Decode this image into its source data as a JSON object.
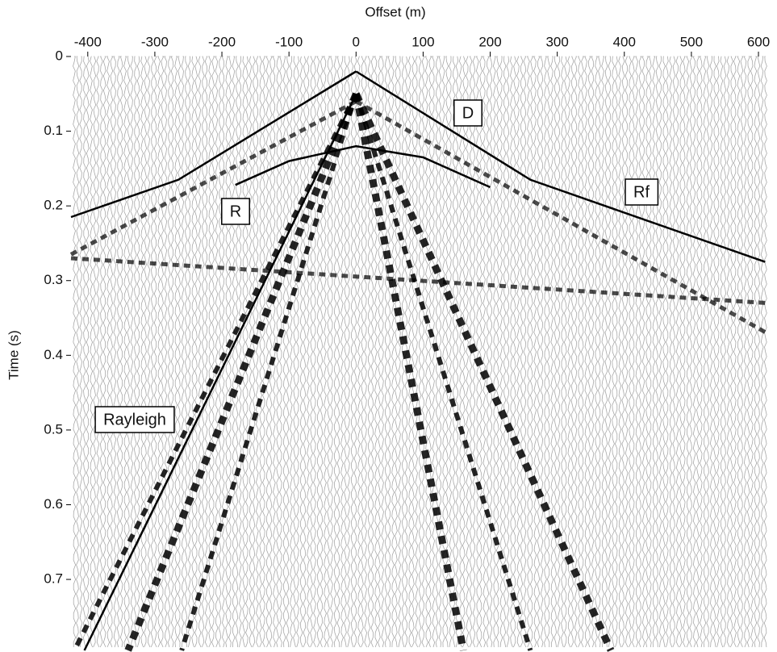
{
  "chart_data": {
    "type": "line",
    "xlabel": "Offset (m)",
    "ylabel": "Time (s)",
    "xlim": [
      -425,
      612
    ],
    "ylim": [
      0,
      0.795
    ],
    "xticks": [
      -400,
      -300,
      -200,
      -100,
      0,
      100,
      200,
      300,
      400,
      500,
      600
    ],
    "yticks": [
      0,
      0.1,
      0.2,
      0.3,
      0.4,
      0.5,
      0.6,
      0.7
    ],
    "y_inverted": true,
    "x_axis_top": true,
    "series": [
      {
        "color": "#000000",
        "x": [
          -425,
          -265,
          0
        ],
        "values": [
          0.215,
          0.165,
          0.02
        ]
      },
      {
        "color": "#000000",
        "x": [
          0,
          260,
          610
        ],
        "values": [
          0.02,
          0.165,
          0.275
        ]
      },
      {
        "color": "#000000",
        "x": [
          -180,
          -100,
          0,
          100,
          200
        ],
        "values": [
          0.172,
          0.14,
          0.12,
          0.135,
          0.175
        ]
      },
      {
        "color": "#000000",
        "x": [
          -405,
          -5
        ],
        "values": [
          0.795,
          0.06
        ]
      }
    ],
    "annotations": [
      "D",
      "Rf",
      "R",
      "Rayleigh"
    ]
  }
}
